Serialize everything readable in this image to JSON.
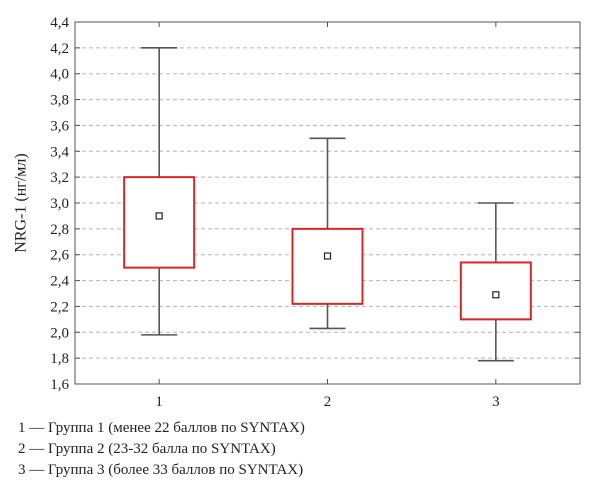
{
  "chart_data": {
    "type": "box",
    "ylabel": "NRG-1 (нг/мл)",
    "ylim": [
      1.6,
      4.4
    ],
    "yticks": [
      "1,6",
      "1,8",
      "2,0",
      "2,2",
      "2,4",
      "2,6",
      "2,8",
      "3,0",
      "3,2",
      "3,4",
      "3,6",
      "3,8",
      "4,0",
      "4,2",
      "4,4"
    ],
    "categories": [
      "1",
      "2",
      "3"
    ],
    "grid": true,
    "colors": {
      "box": "#d62728",
      "whisker": "#555555",
      "grid": "#b5b5b5",
      "frame": "#555555"
    },
    "boxes": [
      {
        "category": "1",
        "median": 2.9,
        "q1": 2.5,
        "q3": 3.2,
        "whisker_low": 1.98,
        "whisker_high": 4.2
      },
      {
        "category": "2",
        "median": 2.59,
        "q1": 2.22,
        "q3": 2.8,
        "whisker_low": 2.03,
        "whisker_high": 3.5
      },
      {
        "category": "3",
        "median": 2.29,
        "q1": 2.1,
        "q3": 2.54,
        "whisker_low": 1.78,
        "whisker_high": 3.0
      }
    ]
  },
  "legend": [
    "1 — Группа 1 (менее 22 баллов по SYNTAX)",
    "2 — Группа 2 (23-32 балла по SYNTAX)",
    "3 — Группа 3 (более 33 баллов по SYNTAX)"
  ]
}
